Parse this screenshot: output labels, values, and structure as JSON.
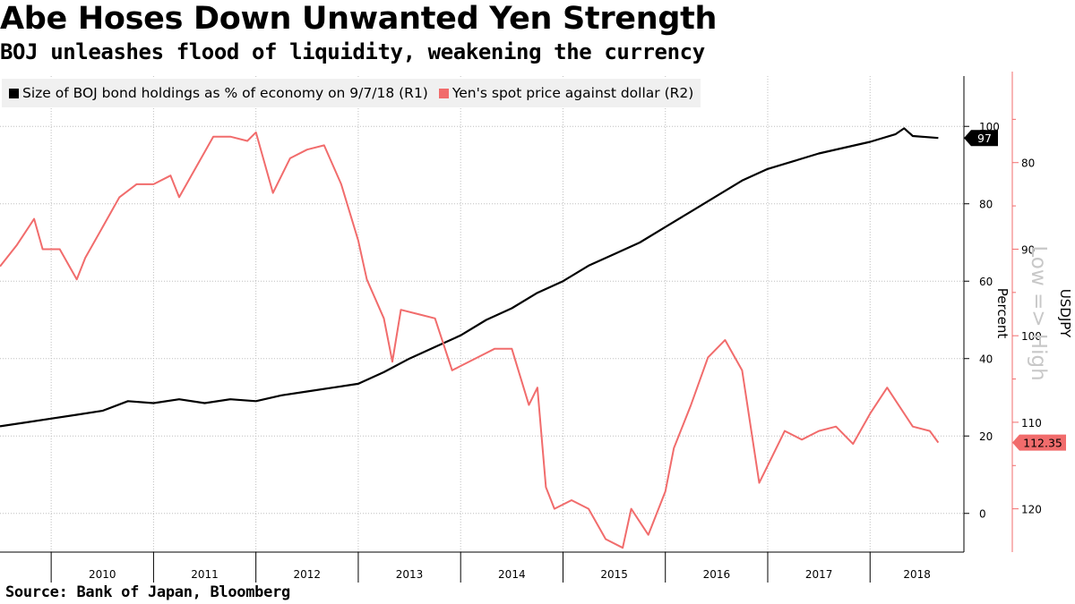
{
  "title": "Abe Hoses Down Unwanted Yen Strength",
  "subtitle": "BOJ unleashes flood of liquidity, weakening the currency",
  "source": "Source: Bank of Japan, Bloomberg",
  "colors": {
    "bond": "#000000",
    "yen": "#f16c6c",
    "grid": "#bfbfbf",
    "legend_bg": "#f0f0f0"
  },
  "legend": {
    "bond": "Size of BOJ bond holdings as % of economy on 9/7/18 (R1)",
    "yen": "Yen's spot price against dollar (R2)"
  },
  "chart_data": {
    "type": "line",
    "x_axis": {
      "labels": [
        "2010",
        "2011",
        "2012",
        "2013",
        "2014",
        "2015",
        "2016",
        "2017",
        "2018"
      ],
      "range": [
        "2009-07",
        "2018-12"
      ]
    },
    "axes": {
      "r1": {
        "label": "Percent",
        "ticks": [
          0,
          20,
          40,
          60,
          80,
          100
        ],
        "range": [
          -10,
          113
        ]
      },
      "r2": {
        "label": "USDJPY",
        "ticks": [
          80,
          90,
          100,
          110,
          120
        ],
        "range": [
          70,
          125
        ],
        "inverted": true,
        "annotation": "Low => High"
      }
    },
    "series": [
      {
        "name": "Size of BOJ bond holdings as % of economy on 9/7/18 (R1)",
        "axis": "r1",
        "last_label": "97",
        "points": [
          [
            "2009-07",
            22.5
          ],
          [
            "2009-10",
            23.5
          ],
          [
            "2010-01",
            24.5
          ],
          [
            "2010-04",
            25.5
          ],
          [
            "2010-07",
            26.5
          ],
          [
            "2010-10",
            29
          ],
          [
            "2011-01",
            28.5
          ],
          [
            "2011-04",
            29.5
          ],
          [
            "2011-07",
            28.5
          ],
          [
            "2011-10",
            29.5
          ],
          [
            "2012-01",
            29
          ],
          [
            "2012-04",
            30.5
          ],
          [
            "2012-07",
            31.5
          ],
          [
            "2012-10",
            32.5
          ],
          [
            "2013-01",
            33.5
          ],
          [
            "2013-04",
            36.5
          ],
          [
            "2013-07",
            40
          ],
          [
            "2013-10",
            43
          ],
          [
            "2014-01",
            46
          ],
          [
            "2014-04",
            50
          ],
          [
            "2014-07",
            53
          ],
          [
            "2014-10",
            57
          ],
          [
            "2015-01",
            60
          ],
          [
            "2015-04",
            64
          ],
          [
            "2015-07",
            67
          ],
          [
            "2015-10",
            70
          ],
          [
            "2016-01",
            74
          ],
          [
            "2016-04",
            78
          ],
          [
            "2016-07",
            82
          ],
          [
            "2016-10",
            86
          ],
          [
            "2017-01",
            89
          ],
          [
            "2017-04",
            91
          ],
          [
            "2017-07",
            93
          ],
          [
            "2017-10",
            94.5
          ],
          [
            "2018-01",
            96
          ],
          [
            "2018-04",
            98
          ],
          [
            "2018-05",
            99.5
          ],
          [
            "2018-06",
            97.5
          ],
          [
            "2018-09",
            97
          ]
        ]
      },
      {
        "name": "Yen's spot price against dollar (R2)",
        "axis": "r2",
        "last_label": "112.35",
        "points": [
          [
            "2009-07",
            92
          ],
          [
            "2009-09",
            89.5
          ],
          [
            "2009-11",
            86.5
          ],
          [
            "2009-12",
            90
          ],
          [
            "2010-02",
            90
          ],
          [
            "2010-04",
            93.5
          ],
          [
            "2010-05",
            91
          ],
          [
            "2010-07",
            87.5
          ],
          [
            "2010-09",
            84
          ],
          [
            "2010-11",
            82.5
          ],
          [
            "2011-01",
            82.5
          ],
          [
            "2011-03",
            81.5
          ],
          [
            "2011-04",
            84
          ],
          [
            "2011-06",
            80.5
          ],
          [
            "2011-08",
            77
          ],
          [
            "2011-10",
            77
          ],
          [
            "2011-12",
            77.5
          ],
          [
            "2012-01",
            76.5
          ],
          [
            "2012-03",
            83.5
          ],
          [
            "2012-05",
            79.5
          ],
          [
            "2012-07",
            78.5
          ],
          [
            "2012-09",
            78
          ],
          [
            "2012-11",
            82.5
          ],
          [
            "2013-01",
            89
          ],
          [
            "2013-02",
            93.5
          ],
          [
            "2013-04",
            98
          ],
          [
            "2013-05",
            103
          ],
          [
            "2013-06",
            97
          ],
          [
            "2013-08",
            97.5
          ],
          [
            "2013-10",
            98
          ],
          [
            "2013-12",
            104
          ],
          [
            "2014-01",
            103.5
          ],
          [
            "2014-03",
            102.5
          ],
          [
            "2014-05",
            101.5
          ],
          [
            "2014-07",
            101.5
          ],
          [
            "2014-09",
            108
          ],
          [
            "2014-10",
            106
          ],
          [
            "2014-11",
            117.5
          ],
          [
            "2014-12",
            120
          ],
          [
            "2015-02",
            119
          ],
          [
            "2015-04",
            120
          ],
          [
            "2015-06",
            123.5
          ],
          [
            "2015-08",
            124.5
          ],
          [
            "2015-09",
            120
          ],
          [
            "2015-11",
            123
          ],
          [
            "2016-01",
            118
          ],
          [
            "2016-02",
            113
          ],
          [
            "2016-04",
            108
          ],
          [
            "2016-06",
            102.5
          ],
          [
            "2016-08",
            100.5
          ],
          [
            "2016-10",
            104
          ],
          [
            "2016-12",
            117
          ],
          [
            "2017-01",
            115
          ],
          [
            "2017-03",
            111
          ],
          [
            "2017-05",
            112
          ],
          [
            "2017-07",
            111
          ],
          [
            "2017-09",
            110.5
          ],
          [
            "2017-11",
            112.5
          ],
          [
            "2018-01",
            109
          ],
          [
            "2018-03",
            106
          ],
          [
            "2018-04",
            107.5
          ],
          [
            "2018-06",
            110.5
          ],
          [
            "2018-08",
            111
          ],
          [
            "2018-09",
            112.35
          ]
        ]
      }
    ]
  }
}
